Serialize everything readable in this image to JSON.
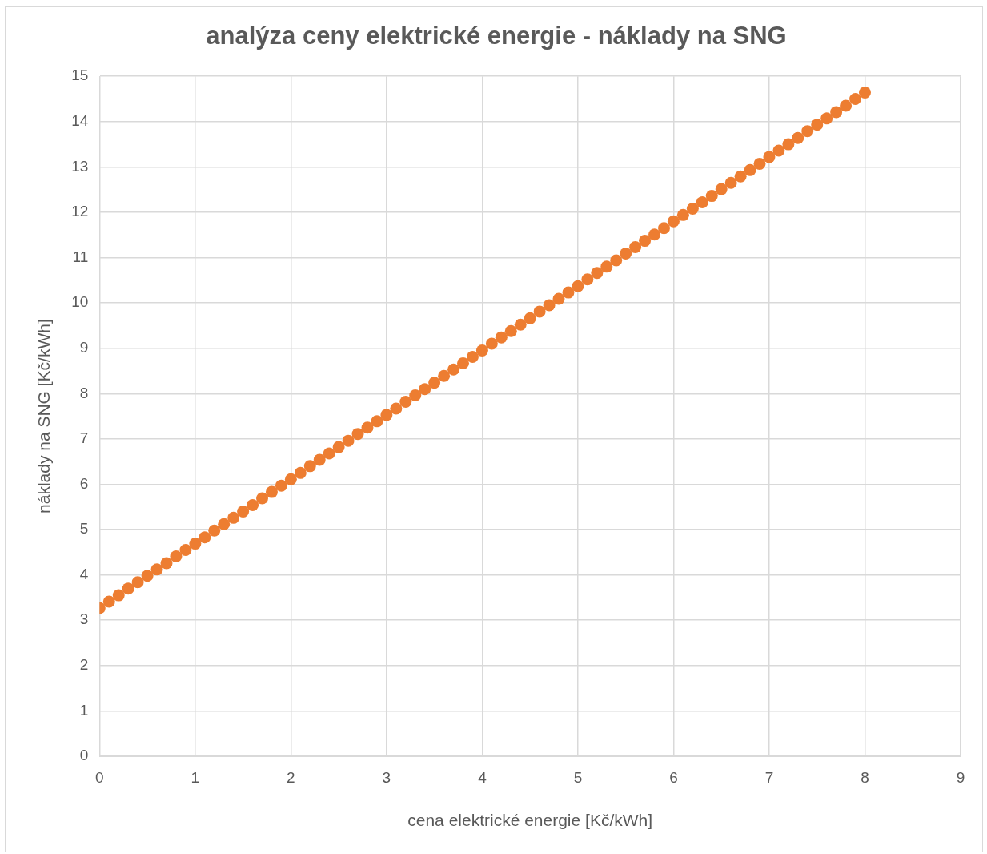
{
  "chart_data": {
    "type": "scatter",
    "title": "analýza ceny elektrické energie - náklady na SNG",
    "xlabel": "cena elektrické energie [Kč/kWh]",
    "ylabel": "náklady na SNG [Kč/kWh]",
    "xlim": [
      0,
      9
    ],
    "xticks": [
      0,
      1,
      2,
      3,
      4,
      5,
      6,
      7,
      8,
      9
    ],
    "ylim": [
      0,
      15
    ],
    "yticks": [
      0,
      1,
      2,
      3,
      4,
      5,
      6,
      7,
      8,
      9,
      10,
      11,
      12,
      13,
      14,
      15
    ],
    "grid": true,
    "legend": false,
    "marker": "circle",
    "series": [
      {
        "color": "#ed7d31",
        "x": [
          0,
          0.1,
          0.2,
          0.3,
          0.4,
          0.5,
          0.6,
          0.7,
          0.8,
          0.9,
          1,
          1.1,
          1.2,
          1.3,
          1.4,
          1.5,
          1.6,
          1.7,
          1.8,
          1.9,
          2,
          2.1,
          2.2,
          2.3,
          2.4,
          2.5,
          2.6,
          2.7,
          2.8,
          2.9,
          3,
          3.1,
          3.2,
          3.3,
          3.4,
          3.5,
          3.6,
          3.7,
          3.8,
          3.9,
          4,
          4.1,
          4.2,
          4.3,
          4.4,
          4.5,
          4.6,
          4.7,
          4.8,
          4.9,
          5,
          5.1,
          5.2,
          5.3,
          5.4,
          5.5,
          5.6,
          5.7,
          5.8,
          5.9,
          6,
          6.1,
          6.2,
          6.3,
          6.4,
          6.5,
          6.6,
          6.7,
          6.8,
          6.9,
          7,
          7.1,
          7.2,
          7.3,
          7.4,
          7.5,
          7.6,
          7.7,
          7.8,
          7.9,
          8
        ],
        "values": [
          3.27,
          3.41,
          3.55,
          3.7,
          3.84,
          3.98,
          4.12,
          4.26,
          4.41,
          4.55,
          4.69,
          4.83,
          4.98,
          5.12,
          5.26,
          5.4,
          5.54,
          5.69,
          5.83,
          5.97,
          6.11,
          6.25,
          6.4,
          6.54,
          6.68,
          6.82,
          6.96,
          7.11,
          7.25,
          7.39,
          7.53,
          7.67,
          7.82,
          7.96,
          8.1,
          8.24,
          8.39,
          8.53,
          8.67,
          8.81,
          8.95,
          9.1,
          9.24,
          9.38,
          9.52,
          9.66,
          9.81,
          9.95,
          10.09,
          10.23,
          10.37,
          10.52,
          10.66,
          10.8,
          10.94,
          11.09,
          11.23,
          11.37,
          11.51,
          11.65,
          11.8,
          11.94,
          12.08,
          12.22,
          12.36,
          12.51,
          12.65,
          12.79,
          12.93,
          13.07,
          13.22,
          13.36,
          13.5,
          13.64,
          13.79,
          13.93,
          14.07,
          14.21,
          14.35,
          14.5,
          14.64
        ]
      }
    ]
  }
}
